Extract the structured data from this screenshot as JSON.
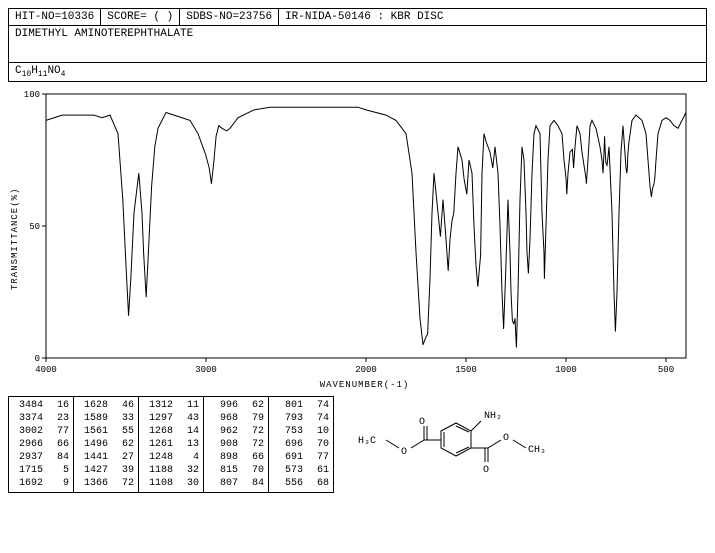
{
  "header": {
    "hit_no": "HIT-NO=10336",
    "score": "SCORE=   (   )",
    "sdbs_no": "SDBS-NO=23756",
    "desc": "IR-NIDA-50146 : KBR DISC"
  },
  "title": "DIMETHYL AMINOTEREPHTHALATE",
  "formula_html": "C<sub>10</sub>H<sub>11</sub>NO<sub>4</sub>",
  "chart": {
    "type": "line",
    "ylabel": "TRANSMITTANCE(%)",
    "xlabel": "WAVENUMBER(-1)",
    "xlim": [
      4000,
      400
    ],
    "ylim": [
      0,
      100
    ],
    "yticks": [
      0,
      50,
      100
    ],
    "xticks": [
      4000,
      3000,
      2000,
      1500,
      1000,
      500
    ],
    "xbreak": 2000,
    "stroke": "#000000",
    "stroke_width": 1,
    "background": "#ffffff",
    "series": [
      [
        4000,
        90
      ],
      [
        3900,
        92
      ],
      [
        3800,
        92
      ],
      [
        3700,
        92
      ],
      [
        3650,
        91
      ],
      [
        3600,
        92
      ],
      [
        3550,
        85
      ],
      [
        3520,
        60
      ],
      [
        3500,
        35
      ],
      [
        3484,
        16
      ],
      [
        3470,
        30
      ],
      [
        3450,
        55
      ],
      [
        3420,
        70
      ],
      [
        3400,
        55
      ],
      [
        3390,
        40
      ],
      [
        3374,
        23
      ],
      [
        3360,
        40
      ],
      [
        3340,
        65
      ],
      [
        3320,
        80
      ],
      [
        3300,
        87
      ],
      [
        3250,
        93
      ],
      [
        3200,
        92
      ],
      [
        3150,
        91
      ],
      [
        3100,
        90
      ],
      [
        3050,
        85
      ],
      [
        3020,
        80
      ],
      [
        3002,
        77
      ],
      [
        2980,
        72
      ],
      [
        2966,
        66
      ],
      [
        2950,
        75
      ],
      [
        2937,
        84
      ],
      [
        2920,
        88
      ],
      [
        2900,
        87
      ],
      [
        2870,
        86
      ],
      [
        2850,
        87
      ],
      [
        2800,
        91
      ],
      [
        2700,
        94
      ],
      [
        2600,
        95
      ],
      [
        2500,
        95
      ],
      [
        2400,
        95
      ],
      [
        2300,
        95
      ],
      [
        2200,
        95
      ],
      [
        2100,
        95
      ],
      [
        2050,
        95
      ],
      [
        2000,
        94
      ],
      [
        1950,
        93
      ],
      [
        1900,
        92
      ],
      [
        1850,
        90
      ],
      [
        1800,
        85
      ],
      [
        1770,
        70
      ],
      [
        1750,
        40
      ],
      [
        1730,
        15
      ],
      [
        1715,
        5
      ],
      [
        1700,
        8
      ],
      [
        1692,
        9
      ],
      [
        1680,
        30
      ],
      [
        1670,
        55
      ],
      [
        1660,
        70
      ],
      [
        1640,
        55
      ],
      [
        1628,
        46
      ],
      [
        1615,
        60
      ],
      [
        1600,
        45
      ],
      [
        1589,
        33
      ],
      [
        1580,
        45
      ],
      [
        1570,
        52
      ],
      [
        1561,
        55
      ],
      [
        1550,
        70
      ],
      [
        1540,
        80
      ],
      [
        1520,
        75
      ],
      [
        1510,
        68
      ],
      [
        1496,
        62
      ],
      [
        1485,
        75
      ],
      [
        1470,
        70
      ],
      [
        1460,
        50
      ],
      [
        1450,
        35
      ],
      [
        1441,
        27
      ],
      [
        1435,
        32
      ],
      [
        1427,
        39
      ],
      [
        1420,
        70
      ],
      [
        1410,
        85
      ],
      [
        1400,
        82
      ],
      [
        1380,
        78
      ],
      [
        1366,
        72
      ],
      [
        1355,
        80
      ],
      [
        1340,
        70
      ],
      [
        1330,
        50
      ],
      [
        1320,
        25
      ],
      [
        1312,
        11
      ],
      [
        1305,
        25
      ],
      [
        1297,
        43
      ],
      [
        1290,
        60
      ],
      [
        1280,
        40
      ],
      [
        1275,
        25
      ],
      [
        1268,
        14
      ],
      [
        1261,
        13
      ],
      [
        1255,
        15
      ],
      [
        1248,
        4
      ],
      [
        1240,
        25
      ],
      [
        1230,
        60
      ],
      [
        1220,
        80
      ],
      [
        1210,
        75
      ],
      [
        1200,
        55
      ],
      [
        1195,
        40
      ],
      [
        1188,
        32
      ],
      [
        1180,
        45
      ],
      [
        1170,
        70
      ],
      [
        1160,
        85
      ],
      [
        1150,
        88
      ],
      [
        1130,
        85
      ],
      [
        1120,
        55
      ],
      [
        1110,
        40
      ],
      [
        1108,
        30
      ],
      [
        1100,
        50
      ],
      [
        1090,
        75
      ],
      [
        1080,
        88
      ],
      [
        1060,
        90
      ],
      [
        1040,
        88
      ],
      [
        1020,
        85
      ],
      [
        1010,
        75
      ],
      [
        1000,
        68
      ],
      [
        996,
        62
      ],
      [
        990,
        70
      ],
      [
        980,
        78
      ],
      [
        968,
        79
      ],
      [
        962,
        72
      ],
      [
        955,
        80
      ],
      [
        945,
        88
      ],
      [
        930,
        85
      ],
      [
        920,
        78
      ],
      [
        910,
        73
      ],
      [
        908,
        72
      ],
      [
        900,
        68
      ],
      [
        898,
        66
      ],
      [
        890,
        75
      ],
      [
        880,
        88
      ],
      [
        870,
        90
      ],
      [
        850,
        87
      ],
      [
        830,
        80
      ],
      [
        820,
        75
      ],
      [
        815,
        70
      ],
      [
        810,
        78
      ],
      [
        807,
        84
      ],
      [
        805,
        80
      ],
      [
        801,
        74
      ],
      [
        795,
        73
      ],
      [
        793,
        74
      ],
      [
        785,
        80
      ],
      [
        770,
        55
      ],
      [
        760,
        25
      ],
      [
        753,
        10
      ],
      [
        745,
        25
      ],
      [
        735,
        55
      ],
      [
        725,
        78
      ],
      [
        715,
        88
      ],
      [
        700,
        72
      ],
      [
        696,
        70
      ],
      [
        693,
        72
      ],
      [
        691,
        77
      ],
      [
        685,
        82
      ],
      [
        670,
        90
      ],
      [
        650,
        92
      ],
      [
        620,
        90
      ],
      [
        600,
        85
      ],
      [
        590,
        75
      ],
      [
        580,
        65
      ],
      [
        573,
        61
      ],
      [
        568,
        64
      ],
      [
        560,
        66
      ],
      [
        556,
        68
      ],
      [
        550,
        75
      ],
      [
        540,
        85
      ],
      [
        520,
        90
      ],
      [
        500,
        91
      ],
      [
        480,
        90
      ],
      [
        460,
        88
      ],
      [
        440,
        87
      ],
      [
        420,
        90
      ],
      [
        400,
        93
      ]
    ]
  },
  "peaks": [
    [
      [
        3484,
        16
      ],
      [
        3374,
        23
      ],
      [
        3002,
        77
      ],
      [
        2966,
        66
      ],
      [
        2937,
        84
      ],
      [
        1715,
        5
      ],
      [
        1692,
        9
      ]
    ],
    [
      [
        1628,
        46
      ],
      [
        1589,
        33
      ],
      [
        1561,
        55
      ],
      [
        1496,
        62
      ],
      [
        1441,
        27
      ],
      [
        1427,
        39
      ],
      [
        1366,
        72
      ]
    ],
    [
      [
        1312,
        11
      ],
      [
        1297,
        43
      ],
      [
        1268,
        14
      ],
      [
        1261,
        13
      ],
      [
        1248,
        4
      ],
      [
        1188,
        32
      ],
      [
        1108,
        30
      ]
    ],
    [
      [
        996,
        62
      ],
      [
        968,
        79
      ],
      [
        962,
        72
      ],
      [
        908,
        72
      ],
      [
        898,
        66
      ],
      [
        815,
        70
      ],
      [
        807,
        84
      ]
    ],
    [
      [
        801,
        74
      ],
      [
        793,
        74
      ],
      [
        753,
        10
      ],
      [
        696,
        70
      ],
      [
        691,
        77
      ],
      [
        573,
        61
      ],
      [
        556,
        68
      ]
    ]
  ],
  "molecule": {
    "label_nh2": "NH₂",
    "label_h3c": "H₃C",
    "label_ch3": "CH₃",
    "label_o": "O"
  }
}
